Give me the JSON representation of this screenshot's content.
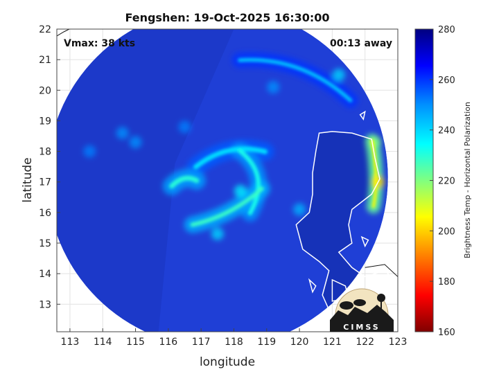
{
  "chart_data": {
    "type": "heatmap",
    "title": "Fengshen: 19-Oct-2025 16:30:00",
    "xlabel": "longitude",
    "ylabel": "latitude",
    "xlim": [
      112.6,
      123
    ],
    "ylim": [
      12.1,
      22
    ],
    "x_ticks": [
      113,
      114,
      115,
      116,
      117,
      118,
      119,
      120,
      121,
      122,
      123
    ],
    "y_ticks": [
      13,
      14,
      15,
      16,
      17,
      18,
      19,
      20,
      21,
      22
    ],
    "grid": true,
    "annotations": {
      "vmax": "Vmax: 38 kts",
      "time_away": "00:13 away"
    },
    "colorbar": {
      "label": "Brightness Temp - Horizontal Polarization",
      "range": [
        160,
        280
      ],
      "ticks": [
        160,
        180,
        200,
        220,
        240,
        260,
        280
      ],
      "colormap": "jet"
    },
    "swath": {
      "center_lon": 117.5,
      "center_lat": 17.15,
      "radius_deg": 5.2
    },
    "features": [
      {
        "name": "spiral band north",
        "lon": 118.0,
        "lat": 17.9,
        "tb": 238
      },
      {
        "name": "spiral band east",
        "lon": 118.6,
        "lat": 17.0,
        "tb": 232
      },
      {
        "name": "spiral band south",
        "lon": 117.9,
        "lat": 16.1,
        "tb": 228
      },
      {
        "name": "band west",
        "lon": 116.4,
        "lat": 17.0,
        "tb": 230
      },
      {
        "name": "coastal band",
        "lon": 122.3,
        "lat": 17.1,
        "tb": 205
      },
      {
        "name": "northern band",
        "lon": 120.5,
        "lat": 20.8,
        "tb": 242
      }
    ]
  },
  "logo": {
    "text": "CIMSS"
  },
  "colors": {
    "background_field": "#1f3fd6",
    "land_field": "#1632b8",
    "coastline": "#ffffff"
  }
}
